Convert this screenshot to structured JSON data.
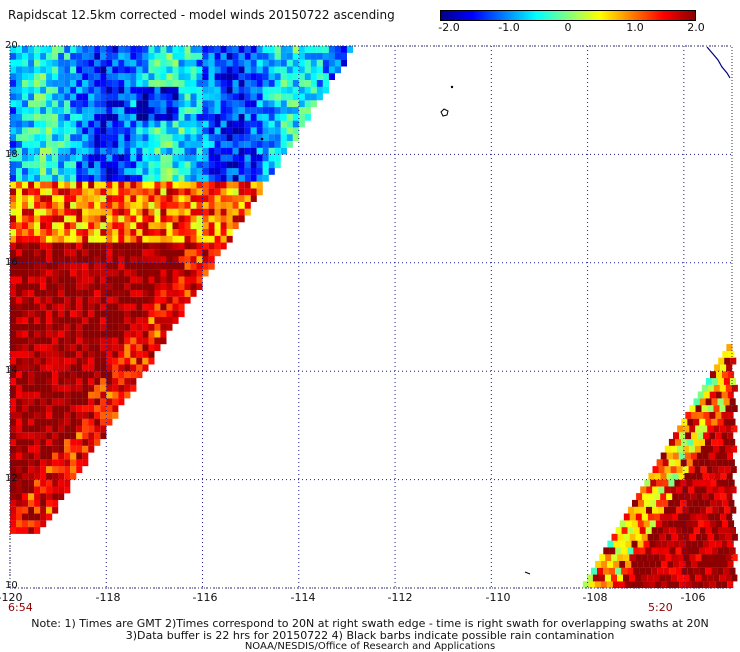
{
  "title": "Rapidscat 12.5km corrected - model winds 20150722 ascending",
  "colorbar": {
    "stops": [
      "#00008b",
      "#0000ff",
      "#0080ff",
      "#00ffff",
      "#80ff80",
      "#ffff00",
      "#ff8000",
      "#ff0000",
      "#8b0000"
    ],
    "labels": [
      "-2.0",
      "-1.0",
      "0",
      "1.0",
      "2.0"
    ],
    "range": [
      -2.0,
      2.0
    ]
  },
  "map": {
    "lon_range": [
      -120,
      -105
    ],
    "lat_range": [
      10,
      20
    ],
    "x_ticks": [
      "-120",
      "-118",
      "-116",
      "-114",
      "-112",
      "-110",
      "-108",
      "-106"
    ],
    "y_ticks": [
      "20",
      "18",
      "16",
      "14",
      "12",
      "10"
    ],
    "grid": "dotted",
    "time_labels": [
      "6:54",
      "5:20"
    ]
  },
  "notes": [
    "Note: 1) Times are GMT 2)Times correspond to 20N at right swath edge - time is right swath for overlapping swaths at 20N",
    "3)Data buffer is 22 hrs for 20150722 4) Black barbs indicate possible rain contamination",
    "NOAA/NESDIS/Office of Research and Applications"
  ]
}
